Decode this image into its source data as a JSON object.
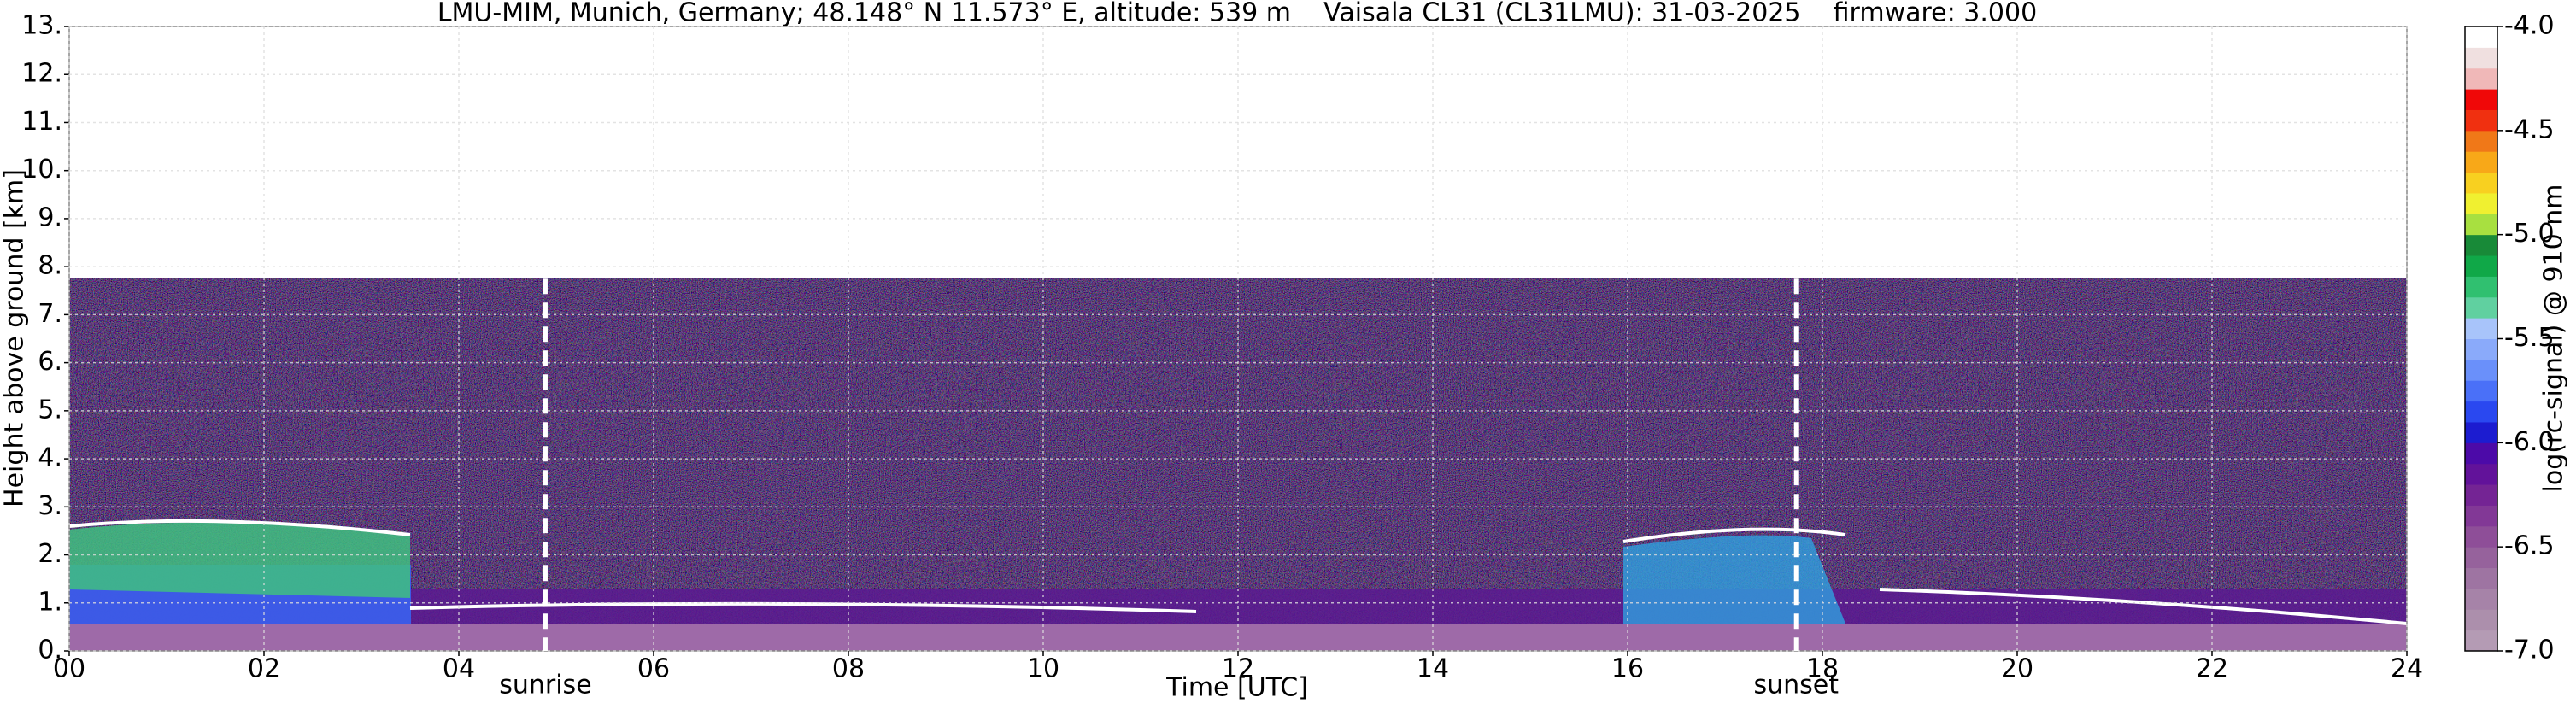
{
  "chart_data": {
    "type": "heatmap",
    "title": "LMU-MIM, Munich, Germany; 48.148° N 11.573° E, altitude: 539 m    Vaisala CL31 (CL31LMU): 31-03-2025    firmware: 3.000",
    "x_label": "Time [UTC]",
    "y_label": "Height above ground [km]",
    "xlim": [
      0,
      24
    ],
    "xticks": [
      {
        "value": 0,
        "label": "00"
      },
      {
        "value": 2,
        "label": "02"
      },
      {
        "value": 4,
        "label": "04"
      },
      {
        "value": 6,
        "label": "06"
      },
      {
        "value": 8,
        "label": "08"
      },
      10,
      12,
      14,
      16,
      18,
      20,
      22,
      24
    ],
    "ylim": [
      0,
      13
    ],
    "yticks": [
      {
        "value": 0,
        "label": "0."
      },
      {
        "value": 1,
        "label": "1."
      },
      {
        "value": 2,
        "label": "2."
      },
      {
        "value": 3,
        "label": "3."
      },
      {
        "value": 4,
        "label": "4."
      },
      {
        "value": 5,
        "label": "5."
      },
      {
        "value": 6,
        "label": "6."
      },
      {
        "value": 7,
        "label": "7."
      },
      {
        "value": 8,
        "label": "8."
      },
      {
        "value": 9,
        "label": "9."
      },
      {
        "value": 10,
        "label": "10."
      },
      {
        "value": 11,
        "label": "11."
      },
      {
        "value": 12,
        "label": "12."
      },
      {
        "value": 13,
        "label": "13."
      }
    ],
    "grid": true,
    "annotations": [
      {
        "text": "sunrise",
        "x": 4.89
      },
      {
        "text": "sunset",
        "x": 17.73
      }
    ],
    "colorbar": {
      "label": "log(rc-signal) @ 910 nm",
      "lim": [
        -7,
        -4
      ],
      "ticks": [
        {
          "value": -7,
          "label": "-7.0"
        },
        {
          "value": -6.5,
          "label": "-6.5"
        },
        {
          "value": -6,
          "label": "-6.0"
        },
        {
          "value": -5.5,
          "label": "-5.5"
        },
        {
          "value": -5,
          "label": "-5.0"
        },
        {
          "value": -4.5,
          "label": "-4.5"
        },
        {
          "value": -4,
          "label": "-4.0"
        }
      ],
      "colors": [
        "#b49bb4",
        "#ac8fac",
        "#a683a8",
        "#9e74a2",
        "#96629c",
        "#8e4e98",
        "#823896",
        "#742494",
        "#62129a",
        "#4c0aa8",
        "#1c1cd0",
        "#2a48f0",
        "#4a70f8",
        "#6a90fa",
        "#8aaafa",
        "#a8c4fa",
        "#60d0a0",
        "#30c070",
        "#10a848",
        "#188a38",
        "#a8e040",
        "#f0f030",
        "#f8d020",
        "#f8a818",
        "#f07818",
        "#f03010",
        "#f00808",
        "#f0b8b8",
        "#f0e0e0",
        "#ffffff"
      ]
    }
  }
}
